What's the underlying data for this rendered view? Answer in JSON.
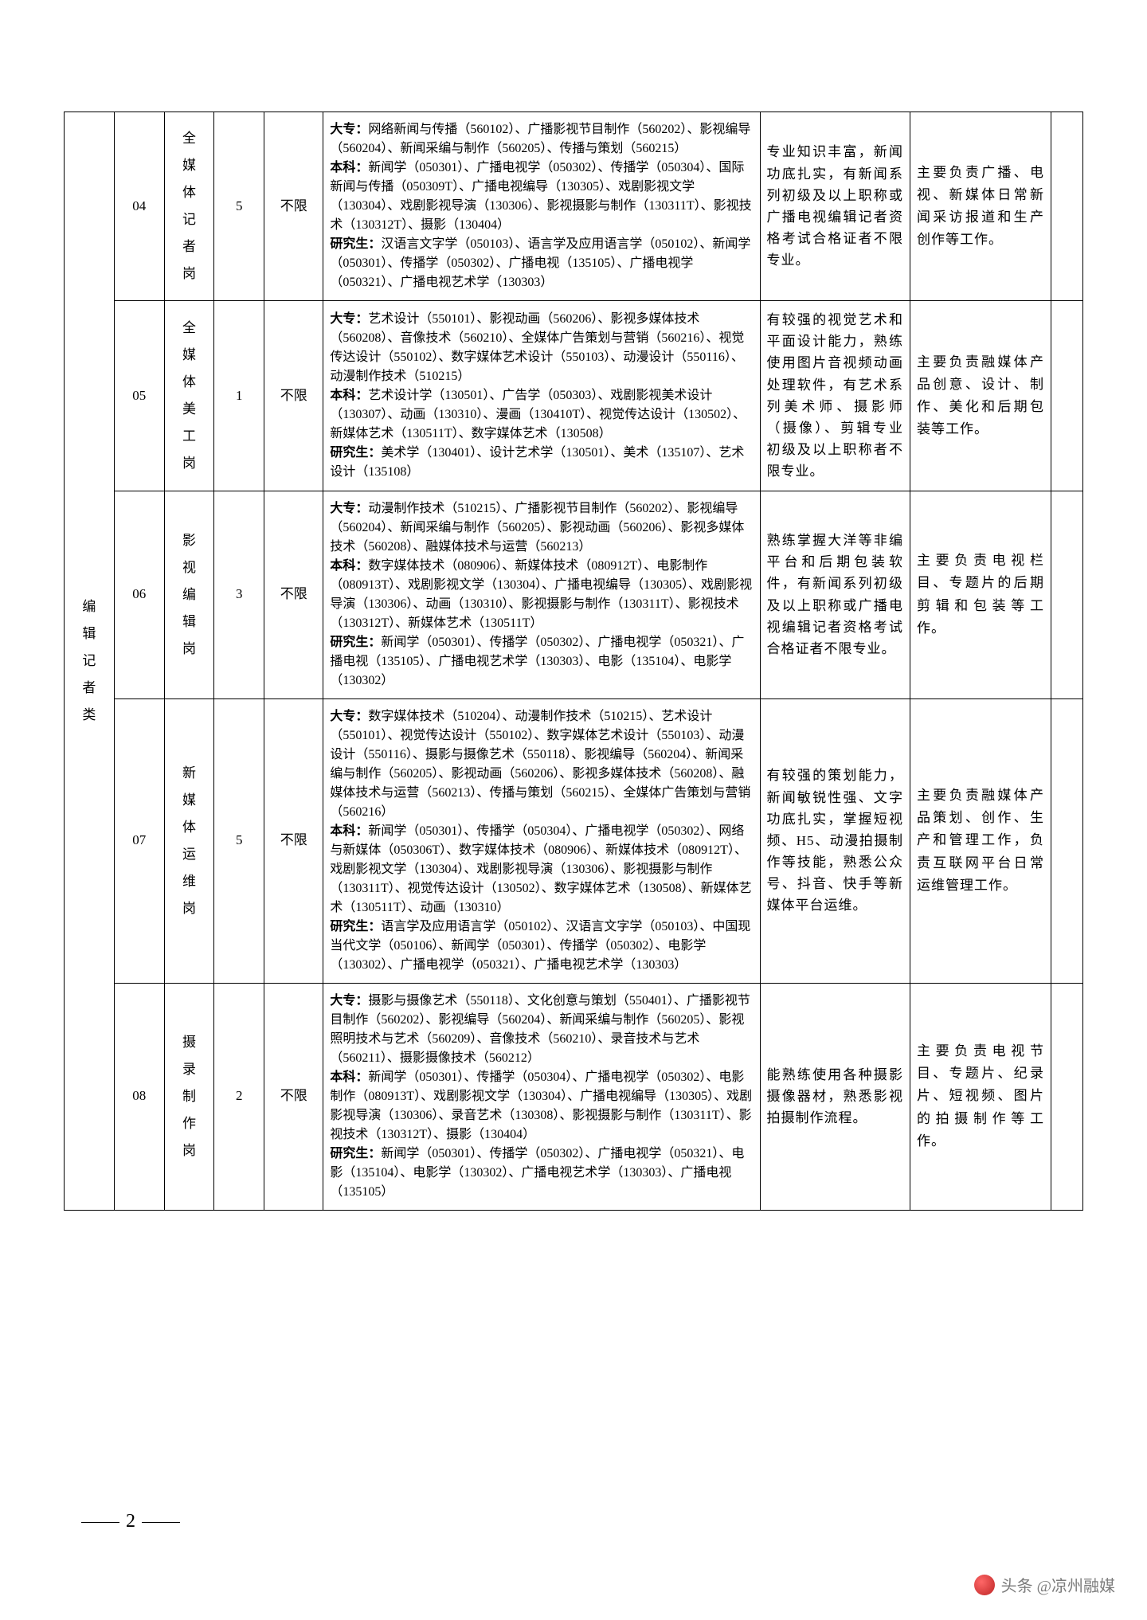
{
  "category_label": "编辑记者类",
  "page_number": "2",
  "watermark_text": "头条 @凉州融媒",
  "rows": [
    {
      "code": "04",
      "position": "全媒体记者岗",
      "count": "5",
      "limit": "不限",
      "majors_dz": "网络新闻与传播（560102）、广播影视节目制作（560202）、影视编导（560204）、新闻采编与制作（560205）、传播与策划（560215）",
      "majors_bk": "新闻学（050301）、广播电视学（050302）、传播学（050304）、国际新闻与传播（050309T）、广播电视编导（130305）、戏剧影视文学（130304）、戏剧影视导演（130306）、影视摄影与制作（130311T）、影视技术（130312T）、摄影（130404）",
      "majors_yjs": "汉语言文字学（050103）、语言学及应用语言学（050102）、新闻学（050301）、传播学（050302）、广播电视（135105）、广播电视学（050321）、广播电视艺术学（130303）",
      "conditions": "专业知识丰富，新闻功底扎实，有新闻系列初级及以上职称或广播电视编辑记者资格考试合格证者不限专业。",
      "duties": "主要负责广播、电视、新媒体日常新闻采访报道和生产创作等工作。"
    },
    {
      "code": "05",
      "position": "全媒体美工岗",
      "count": "1",
      "limit": "不限",
      "majors_dz": "艺术设计（550101）、影视动画（560206）、影视多媒体技术（560208）、音像技术（560210）、全媒体广告策划与营销（560216）、视觉传达设计（550102）、数字媒体艺术设计（550103）、动漫设计（550116）、动漫制作技术（510215）",
      "majors_bk": "艺术设计学（130501）、广告学（050303）、戏剧影视美术设计（130307）、动画（130310）、漫画（130410T）、视觉传达设计（130502）、新媒体艺术（130511T）、数字媒体艺术（130508）",
      "majors_yjs": "美术学（130401）、设计艺术学（130501）、美术（135107）、艺术设计（135108）",
      "conditions": "有较强的视觉艺术和平面设计能力，熟练使用图片音视频动画处理软件，有艺术系列美术师、摄影师（摄像）、剪辑专业初级及以上职称者不限专业。",
      "duties": "主要负责融媒体产品创意、设计、制作、美化和后期包装等工作。"
    },
    {
      "code": "06",
      "position": "影视编辑岗",
      "count": "3",
      "limit": "不限",
      "majors_dz": "动漫制作技术（510215）、广播影视节目制作（560202）、影视编导（560204）、新闻采编与制作（560205）、影视动画（560206）、影视多媒体技术（560208）、融媒体技术与运营（560213）",
      "majors_bk": "数字媒体技术（080906）、新媒体技术（080912T）、电影制作（080913T）、戏剧影视文学（130304）、广播电视编导（130305）、戏剧影视导演（130306）、动画（130310）、影视摄影与制作（130311T）、影视技术（130312T）、新媒体艺术（130511T）",
      "majors_yjs": "新闻学（050301）、传播学（050302）、广播电视学（050321）、广播电视（135105）、广播电视艺术学（130303）、电影（135104）、电影学（130302）",
      "conditions": "熟练掌握大洋等非编平台和后期包装软件，有新闻系列初级及以上职称或广播电视编辑记者资格考试合格证者不限专业。",
      "duties": "主要负责电视栏目、专题片的后期剪辑和包装等工作。"
    },
    {
      "code": "07",
      "position": "新媒体运维岗",
      "count": "5",
      "limit": "不限",
      "majors_dz": "数字媒体技术（510204）、动漫制作技术（510215）、艺术设计（550101）、视觉传达设计（550102）、数字媒体艺术设计（550103）、动漫设计（550116）、摄影与摄像艺术（550118）、影视编导（560204）、新闻采编与制作（560205）、影视动画（560206）、影视多媒体技术（560208）、融媒体技术与运营（560213）、传播与策划（560215）、全媒体广告策划与营销（560216）",
      "majors_bk": "新闻学（050301）、传播学（050304）、广播电视学（050302）、网络与新媒体（050306T）、数字媒体技术（080906）、新媒体技术（080912T）、戏剧影视文学（130304）、戏剧影视导演（130306）、影视摄影与制作（130311T）、视觉传达设计（130502）、数字媒体艺术（130508）、新媒体艺术（130511T）、动画（130310）",
      "majors_yjs": "语言学及应用语言学（050102）、汉语言文字学（050103）、中国现当代文学（050106）、新闻学（050301）、传播学（050302）、电影学（130302）、广播电视学（050321）、广播电视艺术学（130303）",
      "conditions": "有较强的策划能力，新闻敏锐性强、文字功底扎实，掌握短视频、H5、动漫拍摄制作等技能，熟悉公众号、抖音、快手等新媒体平台运维。",
      "duties": "主要负责融媒体产品策划、创作、生产和管理工作，负责互联网平台日常运维管理工作。"
    },
    {
      "code": "08",
      "position": "摄录制作岗",
      "count": "2",
      "limit": "不限",
      "majors_dz": "摄影与摄像艺术（550118）、文化创意与策划（550401）、广播影视节目制作（560202）、影视编导（560204）、新闻采编与制作（560205）、影视照明技术与艺术（560209）、音像技术（560210）、录音技术与艺术（560211）、摄影摄像技术（560212）",
      "majors_bk": "新闻学（050301）、传播学（050304）、广播电视学（050302）、电影制作（080913T）、戏剧影视文学（130304）、广播电视编导（130305）、戏剧影视导演（130306）、录音艺术（130308）、影视摄影与制作（130311T）、影视技术（130312T）、摄影（130404）",
      "majors_yjs": "新闻学（050301）、传播学（050302）、广播电视学（050321）、电影（135104）、电影学（130302）、广播电视艺术学（130303）、广播电视（135105）",
      "conditions": "能熟练使用各种摄影摄像器材，熟悉影视拍摄制作流程。",
      "duties": "主要负责电视节目、专题片、纪录片、短视频、图片的拍摄制作等工作。"
    }
  ]
}
